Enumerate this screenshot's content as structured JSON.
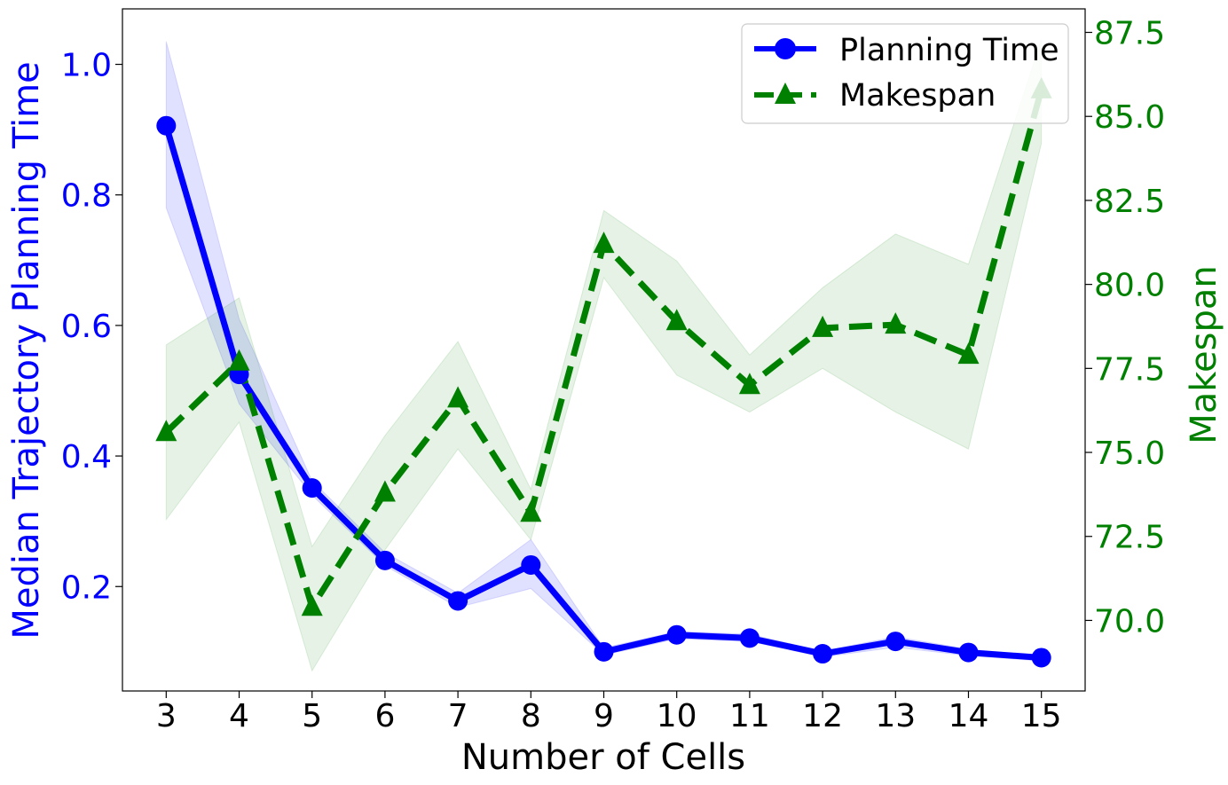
{
  "chart_data": {
    "type": "line",
    "xlabel": "Number of Cells",
    "ylabel_left": "Median Trajectory Planning Time",
    "ylabel_right": "Makespan",
    "x": [
      3,
      4,
      5,
      6,
      7,
      8,
      9,
      10,
      11,
      12,
      13,
      14,
      15
    ],
    "xlim": [
      2.4,
      15.6
    ],
    "ylim_left": [
      0.04,
      1.085
    ],
    "ylim_right": [
      67.9,
      88.2
    ],
    "yticks_left": [
      0.2,
      0.4,
      0.6,
      0.8,
      1.0
    ],
    "yticks_left_labels": [
      "0.2",
      "0.4",
      "0.6",
      "0.8",
      "1.0"
    ],
    "yticks_right": [
      70.0,
      72.5,
      75.0,
      77.5,
      80.0,
      82.5,
      85.0,
      87.5
    ],
    "yticks_right_labels": [
      "70.0",
      "72.5",
      "75.0",
      "77.5",
      "80.0",
      "82.5",
      "85.0",
      "87.5"
    ],
    "xtick_labels": [
      "3",
      "4",
      "5",
      "6",
      "7",
      "8",
      "9",
      "10",
      "11",
      "12",
      "13",
      "14",
      "15"
    ],
    "colors": {
      "left_axis": "#0000ff",
      "right_axis": "#008000",
      "planning": "#0000ff",
      "makespan": "#008000"
    },
    "legend": {
      "position": "top-right",
      "entries": [
        "Planning Time",
        "Makespan"
      ]
    },
    "series": [
      {
        "name": "Planning Time",
        "axis": "left",
        "style": "solid",
        "marker": "circle",
        "values": [
          0.906,
          0.525,
          0.351,
          0.24,
          0.178,
          0.233,
          0.1,
          0.126,
          0.121,
          0.097,
          0.116,
          0.099,
          0.091
        ],
        "lower": [
          0.78,
          0.48,
          0.34,
          0.232,
          0.168,
          0.197,
          0.095,
          0.12,
          0.116,
          0.092,
          0.107,
          0.094,
          0.086
        ],
        "upper": [
          1.035,
          0.61,
          0.362,
          0.252,
          0.19,
          0.272,
          0.106,
          0.131,
          0.127,
          0.101,
          0.123,
          0.104,
          0.094
        ]
      },
      {
        "name": "Makespan",
        "axis": "right",
        "style": "dashed",
        "marker": "triangle",
        "values": [
          75.6,
          77.7,
          70.4,
          73.8,
          76.6,
          73.2,
          81.2,
          78.9,
          77.0,
          78.7,
          78.8,
          77.9,
          85.8
        ],
        "lower": [
          73.0,
          75.9,
          68.5,
          72.1,
          75.1,
          72.4,
          80.2,
          77.3,
          76.2,
          77.5,
          76.2,
          75.1,
          84.2
        ],
        "upper": [
          78.2,
          79.6,
          72.2,
          75.5,
          78.3,
          73.9,
          82.2,
          80.7,
          77.9,
          79.9,
          81.5,
          80.6,
          87.3
        ]
      }
    ]
  }
}
